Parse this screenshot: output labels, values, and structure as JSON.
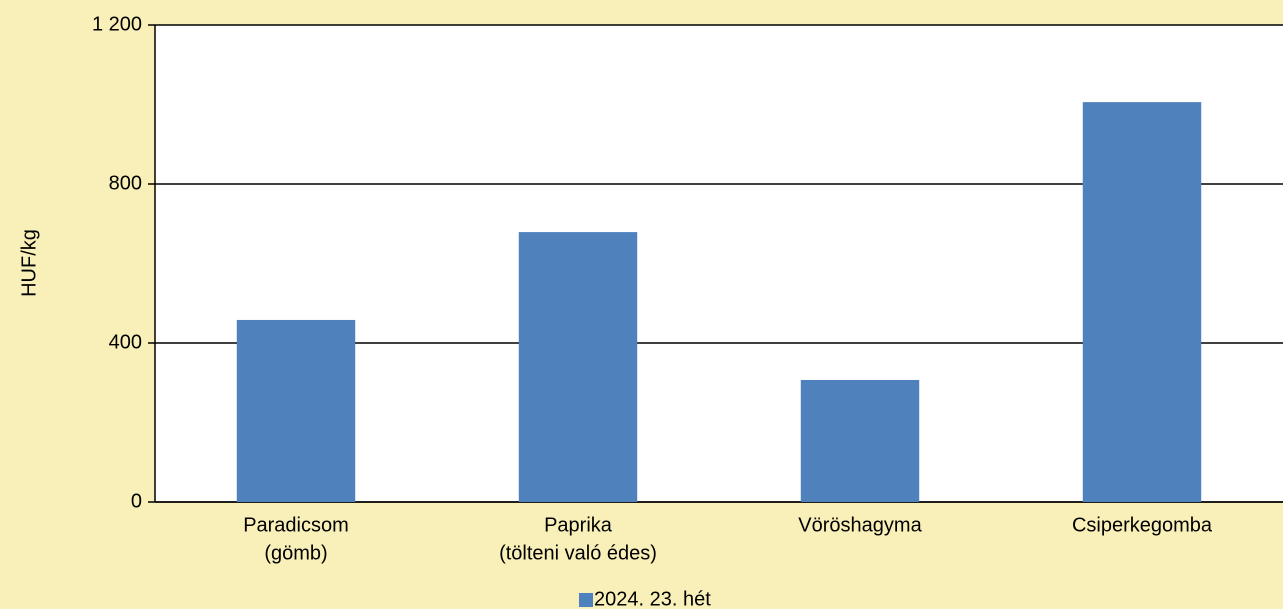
{
  "chart_data": {
    "type": "bar",
    "y_label": "HUF/kg",
    "categories": [
      [
        "Paradicsom",
        "(gömb)"
      ],
      [
        "Paprika",
        "(tölteni való édes)"
      ],
      [
        "Vöröshagyma"
      ],
      [
        "Csiperkegomba"
      ]
    ],
    "series": [
      {
        "name": "2024. 23. hét",
        "color": "#4f81bd",
        "values": [
          458,
          679,
          307,
          1006
        ]
      }
    ],
    "ylim": [
      0,
      1200
    ],
    "yticks": [
      0,
      400,
      800,
      {
        "value": 1200,
        "label": "1 200"
      }
    ],
    "grid": true,
    "legend": "bottom"
  }
}
